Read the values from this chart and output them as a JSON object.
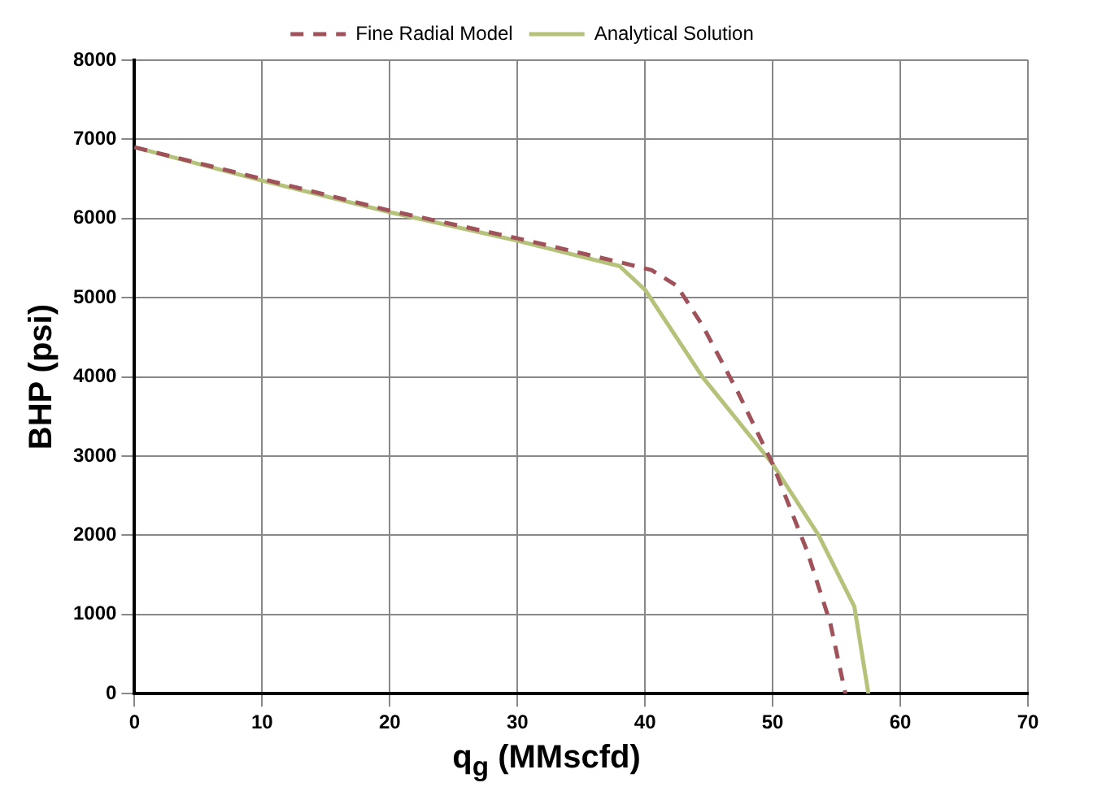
{
  "chart_data": {
    "type": "line",
    "xlabel": "q$_{g}$ (MMscfd)",
    "ylabel": "BHP (psi)",
    "xlim": [
      0,
      70
    ],
    "xticks": [
      0,
      10,
      20,
      30,
      40,
      50,
      60,
      70
    ],
    "ylim": [
      0,
      8000
    ],
    "yticks": [
      0,
      1000,
      2000,
      3000,
      4000,
      5000,
      6000,
      7000,
      8000
    ],
    "grid": true,
    "legend": "top",
    "marker": "none",
    "series": [
      {
        "name": "Fine Radial Model",
        "color": "#a0525a",
        "line_style": "dashed",
        "x": [
          0,
          10,
          20,
          30,
          38,
          40.5,
          42.5,
          44.5,
          47.3,
          50,
          52.7,
          54.5,
          55.7
        ],
        "values": [
          6900,
          6500,
          6100,
          5750,
          5450,
          5350,
          5150,
          4650,
          3800,
          2900,
          1800,
          900,
          0
        ]
      },
      {
        "name": "Analytical Solution",
        "color": "#b5c27a",
        "line_style": "solid",
        "x": [
          0,
          10,
          20,
          30,
          38,
          40,
          44.5,
          50,
          53.6,
          56.4,
          57.5
        ],
        "values": [
          6900,
          6480,
          6080,
          5720,
          5400,
          5100,
          4000,
          2900,
          2000,
          1100,
          0
        ]
      }
    ]
  }
}
